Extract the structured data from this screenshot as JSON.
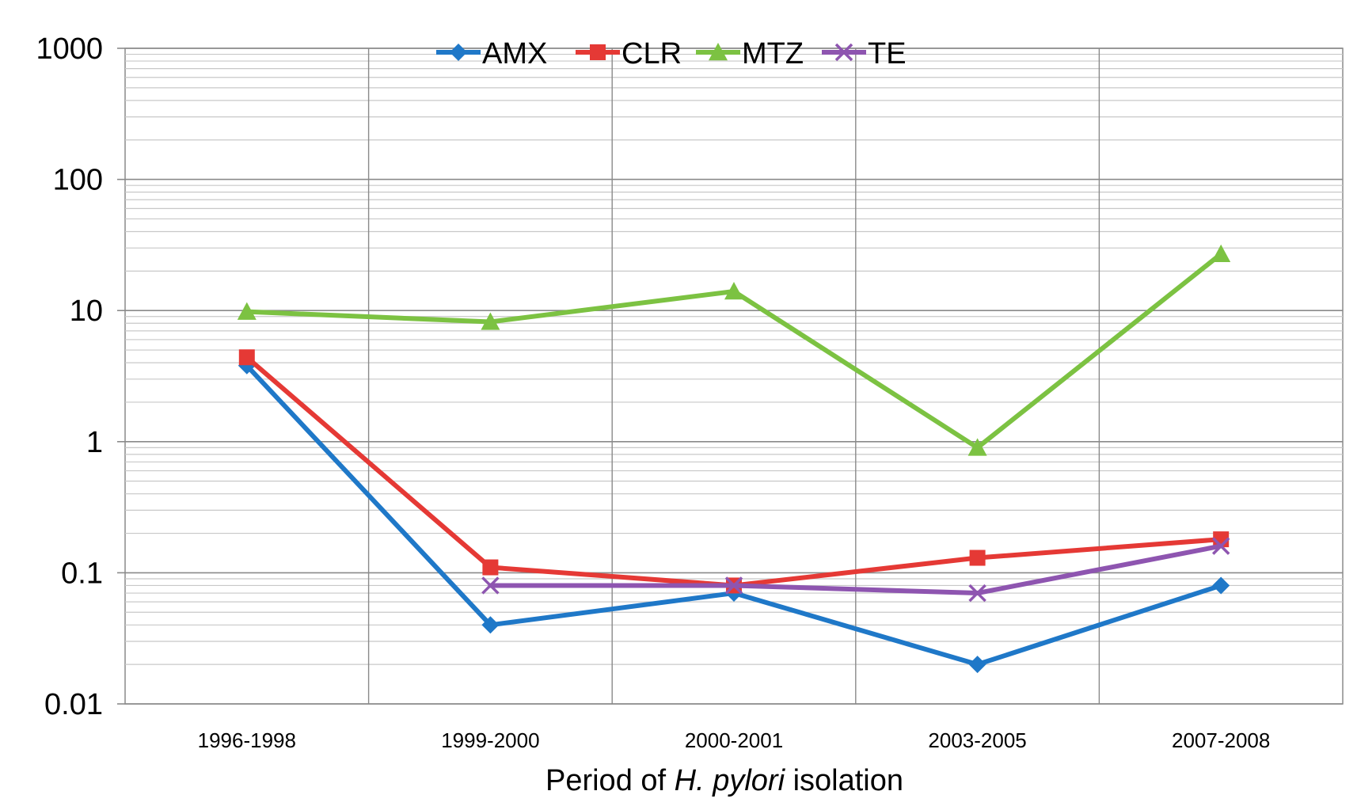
{
  "chart_data": {
    "type": "line",
    "title": "",
    "categories": [
      "1996-1998",
      "1999-2000",
      "2000-2001",
      "2003-2005",
      "2007-2008"
    ],
    "xlabel": {
      "prefix": "Period of ",
      "italic": "H. pylori",
      "suffix": " isolation"
    },
    "ylabel": "",
    "yscale": "log",
    "ylim": [
      0.01,
      1000
    ],
    "yticks": [
      "0.01",
      "0.1",
      "1",
      "10",
      "100",
      "1000"
    ],
    "legend_position": "top-center",
    "grid": true,
    "series": [
      {
        "name": "AMX",
        "color": "#1F78C8",
        "marker": "diamond",
        "values": [
          3.8,
          0.04,
          0.07,
          0.02,
          0.08
        ]
      },
      {
        "name": "CLR",
        "color": "#E53935",
        "marker": "square",
        "values": [
          4.4,
          0.11,
          0.08,
          0.13,
          0.18
        ]
      },
      {
        "name": "MTZ",
        "color": "#7CC242",
        "marker": "triangle",
        "values": [
          9.8,
          8.2,
          14,
          0.9,
          27
        ]
      },
      {
        "name": "TE",
        "color": "#8E55B0",
        "marker": "x",
        "values": [
          null,
          0.08,
          0.08,
          0.07,
          0.16
        ]
      }
    ]
  }
}
